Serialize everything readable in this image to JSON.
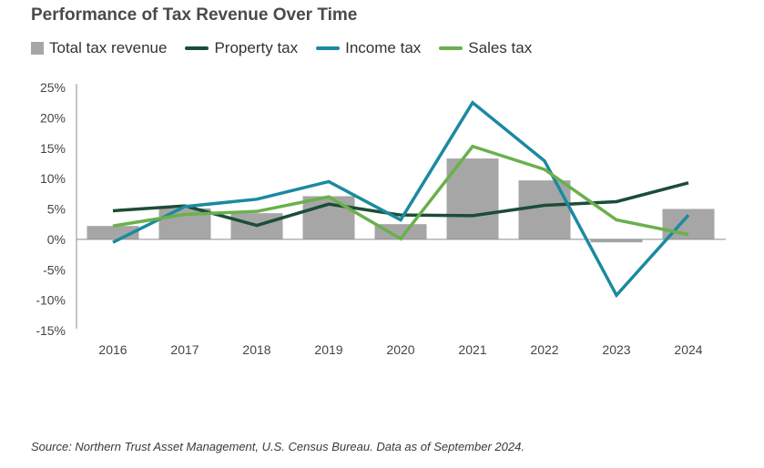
{
  "chart_data": {
    "type": "bar",
    "title": "Performance of Tax Revenue Over Time",
    "categories": [
      "2016",
      "2017",
      "2018",
      "2019",
      "2020",
      "2021",
      "2022",
      "2023",
      "2024"
    ],
    "y_ticks": [
      "25%",
      "20%",
      "15%",
      "10%",
      "5%",
      "0%",
      "-5%",
      "-10%",
      "-15%"
    ],
    "ylim": [
      -15,
      25
    ],
    "grid": false,
    "legend_position": "top-left",
    "bar_series": {
      "name": "Total tax revenue",
      "color": "#a6a6a6",
      "values": [
        2.2,
        5.1,
        4.3,
        7.1,
        2.5,
        13.3,
        9.7,
        -0.5,
        5.0
      ]
    },
    "line_series": [
      {
        "name": "Property tax",
        "color": "#1c4d36",
        "values": [
          4.7,
          5.5,
          2.3,
          5.8,
          4.0,
          3.9,
          5.6,
          6.2,
          9.3
        ]
      },
      {
        "name": "Income tax",
        "color": "#1b8aa0",
        "values": [
          -0.5,
          5.4,
          6.6,
          9.5,
          3.2,
          22.5,
          12.9,
          -9.2,
          4.0
        ]
      },
      {
        "name": "Sales tax",
        "color": "#6ab04c",
        "values": [
          2.2,
          4.1,
          4.6,
          7.0,
          0.1,
          15.3,
          11.5,
          3.2,
          0.8
        ]
      }
    ]
  },
  "source": "Source: Northern Trust Asset Management, U.S. Census Bureau. Data as of September 2024."
}
